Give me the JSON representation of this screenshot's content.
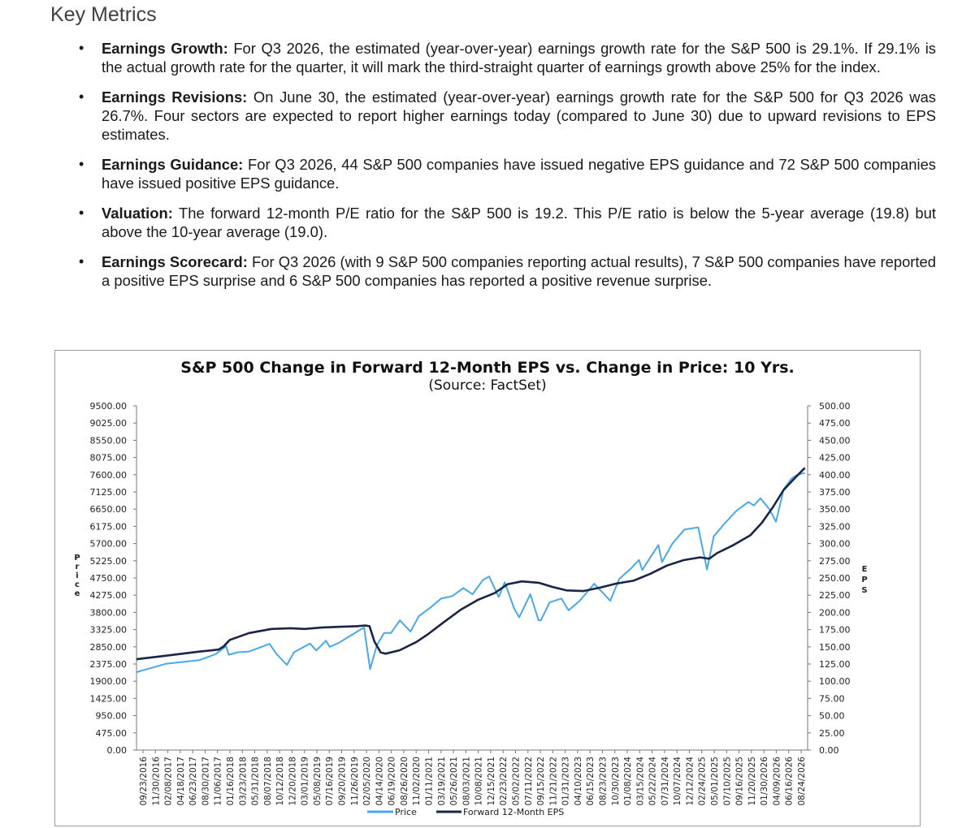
{
  "heading": "Key Metrics",
  "bullets": [
    {
      "label": "Earnings Growth:",
      "text": " For Q3 2026, the estimated (year-over-year) earnings growth rate for the S&P 500 is 29.1%. If 29.1% is the actual growth rate for the quarter, it will mark the third-straight quarter of earnings growth above 25% for the index."
    },
    {
      "label": "Earnings Revisions:",
      "text": " On June 30, the estimated (year-over-year) earnings growth rate for the S&P 500 for Q3 2026 was 26.7%. Four sectors are expected to report higher earnings today (compared to June 30) due to upward revisions to EPS estimates."
    },
    {
      "label": "Earnings Guidance:",
      "text": " For Q3 2026, 44 S&P 500 companies have issued negative EPS guidance and 72 S&P 500 companies have issued positive EPS guidance."
    },
    {
      "label": "Valuation:",
      "text": " The forward 12-month P/E ratio for the S&P 500 is 19.2. This P/E ratio is below the 5-year average (19.8) but above the 10-year average (19.0)."
    },
    {
      "label": "Earnings Scorecard:",
      "text": " For Q3 2026 (with 9 S&P 500 companies reporting actual results), 7 S&P 500 companies have reported a positive EPS surprise and 6 S&P 500 companies has reported a positive revenue surprise."
    }
  ],
  "chart_data": {
    "type": "line",
    "title": "S&P 500 Change in Forward 12-Month EPS vs. Change in Price: 10 Yrs.",
    "subtitle": "(Source: FactSet)",
    "ylabel_left": "Price",
    "ylabel_right": "EPS",
    "ylim_left": [
      0,
      9500
    ],
    "ylim_right": [
      0,
      500
    ],
    "yticks_left": [
      "0.00",
      "475.00",
      "950.00",
      "1425.00",
      "1900.00",
      "2375.00",
      "2850.00",
      "3325.00",
      "3800.00",
      "4275.00",
      "4750.00",
      "5225.00",
      "5700.00",
      "6175.00",
      "6650.00",
      "7125.00",
      "7600.00",
      "8075.00",
      "8550.00",
      "9025.00",
      "9500.00"
    ],
    "yticks_right": [
      "0.00",
      "25.00",
      "50.00",
      "75.00",
      "100.00",
      "125.00",
      "150.00",
      "175.00",
      "200.00",
      "225.00",
      "250.00",
      "275.00",
      "300.00",
      "325.00",
      "350.00",
      "375.00",
      "400.00",
      "425.00",
      "450.00",
      "475.00",
      "500.00"
    ],
    "x_ticks": [
      "09/23/2016",
      "11/30/2016",
      "02/08/2017",
      "04/18/2017",
      "06/23/2017",
      "08/30/2017",
      "11/06/2017",
      "01/16/2018",
      "03/23/2018",
      "05/31/2018",
      "08/07/2018",
      "10/12/2018",
      "12/20/2018",
      "03/01/2019",
      "05/08/2019",
      "07/16/2019",
      "09/20/2019",
      "11/26/2019",
      "02/05/2020",
      "04/14/2020",
      "06/19/2020",
      "08/26/2020",
      "11/02/2020",
      "01/11/2021",
      "03/19/2021",
      "05/26/2021",
      "08/03/2021",
      "10/08/2021",
      "12/15/2021",
      "02/23/2022",
      "05/02/2022",
      "07/11/2022",
      "09/15/2022",
      "11/21/2022",
      "01/31/2023",
      "04/10/2023",
      "06/15/2023",
      "08/23/2023",
      "10/30/2023",
      "01/08/2024",
      "03/15/2024",
      "05/22/2024",
      "07/31/2024",
      "10/07/2024",
      "12/12/2024",
      "02/24/2025",
      "05/01/2025",
      "07/10/2025",
      "09/16/2025",
      "11/20/2025",
      "01/30/2026",
      "04/09/2026",
      "06/16/2026",
      "08/24/2026"
    ],
    "legend": "bottom-center",
    "grid": false,
    "series": [
      {
        "name": "Price",
        "axis": "left",
        "color": "#4aa8e8",
        "x": [
          "2016-09-23",
          "2016-12-15",
          "2017-03-01",
          "2017-06-01",
          "2017-09-01",
          "2017-12-01",
          "2018-01-26",
          "2018-02-09",
          "2018-04-01",
          "2018-06-01",
          "2018-09-20",
          "2018-10-29",
          "2018-12-24",
          "2019-02-01",
          "2019-04-30",
          "2019-06-03",
          "2019-07-26",
          "2019-08-15",
          "2019-10-01",
          "2019-12-01",
          "2020-02-19",
          "2020-03-23",
          "2020-04-30",
          "2020-06-08",
          "2020-07-15",
          "2020-09-02",
          "2020-10-30",
          "2020-12-15",
          "2021-02-15",
          "2021-04-15",
          "2021-06-15",
          "2021-08-15",
          "2021-10-04",
          "2021-12-01",
          "2022-01-03",
          "2022-02-24",
          "2022-03-29",
          "2022-05-20",
          "2022-06-16",
          "2022-08-16",
          "2022-09-30",
          "2022-10-12",
          "2022-11-30",
          "2023-02-02",
          "2023-03-13",
          "2023-05-15",
          "2023-07-31",
          "2023-10-27",
          "2023-12-15",
          "2024-02-15",
          "2024-04-01",
          "2024-04-19",
          "2024-07-16",
          "2024-08-05",
          "2024-10-01",
          "2024-12-06",
          "2025-02-19",
          "2025-04-08",
          "2025-05-15",
          "2025-07-15",
          "2025-09-15",
          "2025-11-20",
          "2025-12-20",
          "2026-01-25",
          "2026-03-15",
          "2026-04-20",
          "2026-06-01",
          "2026-07-15",
          "2026-08-15",
          "2026-09-25"
        ],
        "values": [
          2150,
          2270,
          2380,
          2430,
          2480,
          2650,
          2870,
          2630,
          2700,
          2720,
          2930,
          2650,
          2350,
          2700,
          2940,
          2750,
          3020,
          2850,
          2950,
          3140,
          3386,
          2237,
          2900,
          3230,
          3230,
          3580,
          3270,
          3700,
          3930,
          4180,
          4250,
          4470,
          4300,
          4700,
          4790,
          4225,
          4630,
          3900,
          3666,
          4300,
          3585,
          3577,
          4080,
          4180,
          3855,
          4130,
          4590,
          4120,
          4720,
          5000,
          5250,
          4970,
          5660,
          5190,
          5700,
          6090,
          6144,
          4982,
          5900,
          6260,
          6600,
          6850,
          6750,
          6950,
          6650,
          6300,
          7200,
          7500,
          7600,
          7650
        ]
      },
      {
        "name": "Forward 12-Month EPS",
        "axis": "right",
        "color": "#1a2447",
        "x": [
          "2016-09-23",
          "2017-03-01",
          "2017-09-01",
          "2017-12-15",
          "2018-01-10",
          "2018-02-15",
          "2018-06-01",
          "2018-10-01",
          "2019-01-15",
          "2019-04-01",
          "2019-07-01",
          "2019-10-01",
          "2020-01-10",
          "2020-02-25",
          "2020-03-20",
          "2020-04-15",
          "2020-05-20",
          "2020-06-15",
          "2020-09-01",
          "2020-12-01",
          "2021-02-01",
          "2021-05-01",
          "2021-08-01",
          "2021-11-01",
          "2022-02-01",
          "2022-04-15",
          "2022-07-01",
          "2022-10-01",
          "2022-12-15",
          "2023-03-01",
          "2023-06-01",
          "2023-09-01",
          "2023-12-01",
          "2024-03-01",
          "2024-06-01",
          "2024-09-01",
          "2024-12-01",
          "2025-03-01",
          "2025-04-20",
          "2025-06-01",
          "2025-09-01",
          "2025-12-01",
          "2026-02-01",
          "2026-04-01",
          "2026-06-01",
          "2026-08-01",
          "2026-09-25"
        ],
        "values": [
          132,
          137,
          143,
          146,
          150,
          160,
          170,
          176,
          177,
          176,
          178,
          179,
          180,
          181,
          180,
          158,
          142,
          140,
          145,
          157,
          168,
          186,
          204,
          218,
          228,
          241,
          245,
          243,
          237,
          232,
          231,
          236,
          242,
          246,
          256,
          268,
          276,
          280,
          278,
          286,
          298,
          312,
          330,
          352,
          378,
          395,
          410
        ]
      }
    ]
  }
}
